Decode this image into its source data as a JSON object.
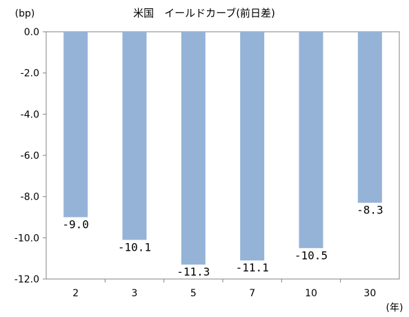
{
  "chart_data": {
    "type": "bar",
    "title": "米国　イールドカーブ(前日差)",
    "ylabel": "(bp)",
    "xlabel": "(年)",
    "categories": [
      "2",
      "3",
      "5",
      "7",
      "10",
      "30"
    ],
    "values": [
      -9.0,
      -10.1,
      -11.3,
      -11.1,
      -10.5,
      -8.3
    ],
    "data_labels": [
      "-9.0",
      "-10.1",
      "-11.3",
      "-11.1",
      "-10.5",
      "-8.3"
    ],
    "y_ticks": [
      0.0,
      -2.0,
      -4.0,
      -6.0,
      -8.0,
      -10.0,
      -12.0
    ],
    "y_tick_labels": [
      "0.0",
      "-2.0",
      "-4.0",
      "-6.0",
      "-8.0",
      "-10.0",
      "-12.0"
    ],
    "ylim": [
      -12.0,
      0.0
    ],
    "grid": false,
    "legend": "none",
    "bar_color": "#95b3d7"
  }
}
